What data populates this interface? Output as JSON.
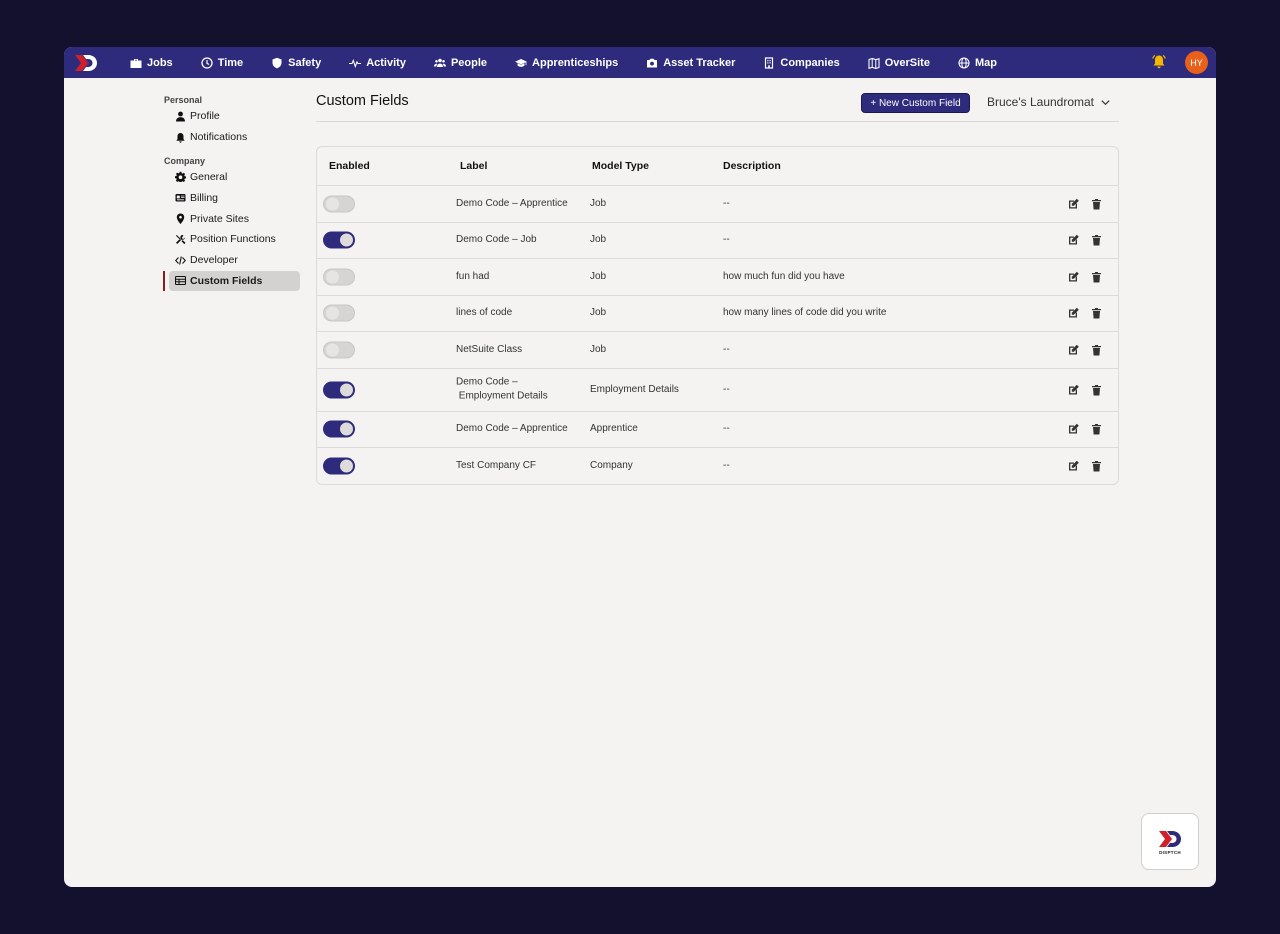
{
  "nav": {
    "items": [
      {
        "label": "Jobs",
        "icon": "briefcase-icon"
      },
      {
        "label": "Time",
        "icon": "clock-icon"
      },
      {
        "label": "Safety",
        "icon": "shield-icon"
      },
      {
        "label": "Activity",
        "icon": "pulse-icon"
      },
      {
        "label": "People",
        "icon": "people-icon"
      },
      {
        "label": "Apprenticeships",
        "icon": "graduation-cap-icon"
      },
      {
        "label": "Asset Tracker",
        "icon": "camera-icon"
      },
      {
        "label": "Companies",
        "icon": "building-icon"
      },
      {
        "label": "OverSite",
        "icon": "map-fold-icon"
      },
      {
        "label": "Map",
        "icon": "globe-icon"
      }
    ],
    "avatar_initials": "HY",
    "bell_color": "#f5b800"
  },
  "sidebar": {
    "personal_label": "Personal",
    "personal_items": [
      {
        "label": "Profile",
        "icon": "user-icon"
      },
      {
        "label": "Notifications",
        "icon": "bell-icon"
      }
    ],
    "company_label": "Company",
    "company_items": [
      {
        "label": "General",
        "icon": "gear-icon"
      },
      {
        "label": "Billing",
        "icon": "id-card-icon"
      },
      {
        "label": "Private Sites",
        "icon": "map-pin-icon"
      },
      {
        "label": "Position Functions",
        "icon": "tools-icon"
      },
      {
        "label": "Developer",
        "icon": "code-icon"
      },
      {
        "label": "Custom Fields",
        "icon": "table-icon",
        "active": true
      }
    ]
  },
  "header": {
    "title": "Custom Fields",
    "new_button": "+ New Custom Field",
    "company": "Bruce's Laundromat"
  },
  "table": {
    "columns": [
      "Enabled",
      "Label",
      "Model Type",
      "Description"
    ],
    "rows": [
      {
        "enabled": false,
        "label": "Demo Code – Apprentice",
        "model_type": "Job",
        "description": "--"
      },
      {
        "enabled": true,
        "label": "Demo Code – Job",
        "model_type": "Job",
        "description": "--"
      },
      {
        "enabled": false,
        "label": "fun had",
        "model_type": "Job",
        "description": "how much fun did you have"
      },
      {
        "enabled": false,
        "label": "lines of code",
        "model_type": "Job",
        "description": "how many lines of code did you write"
      },
      {
        "enabled": false,
        "label": "NetSuite Class",
        "model_type": "Job",
        "description": "--"
      },
      {
        "enabled": true,
        "label": "Demo Code –\n Employment Details",
        "model_type": "Employment Details",
        "description": "--"
      },
      {
        "enabled": true,
        "label": "Demo Code – Apprentice",
        "model_type": "Apprentice",
        "description": "--"
      },
      {
        "enabled": true,
        "label": "Test Company CF",
        "model_type": "Company",
        "description": "--"
      }
    ]
  },
  "fab": {
    "text": "DISPTCH"
  },
  "colors": {
    "brand": "#2e2a7c",
    "accent_red": "#d0202a",
    "avatar": "#e8611a"
  }
}
